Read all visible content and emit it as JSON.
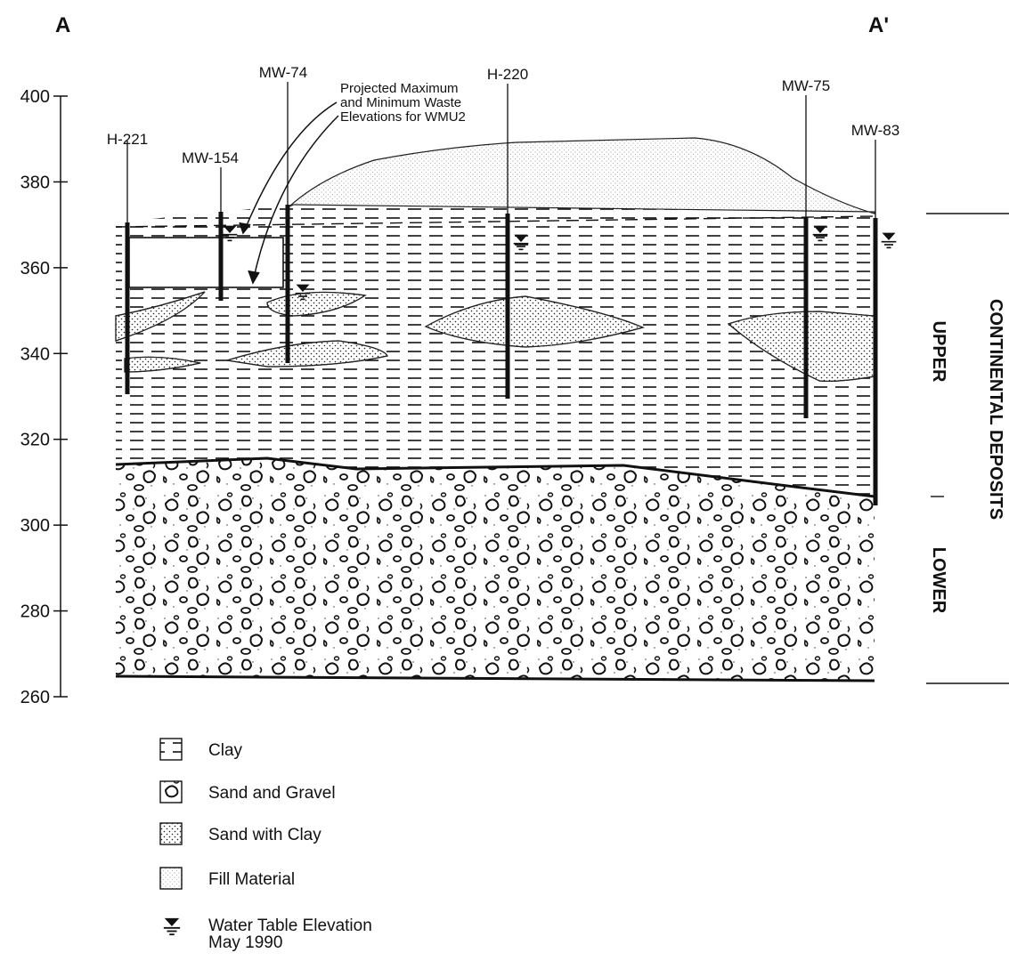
{
  "section": {
    "start": "A",
    "end": "A'"
  },
  "elevation_axis": {
    "ticks": [
      400,
      380,
      360,
      340,
      320,
      300,
      280,
      260
    ]
  },
  "wells": [
    {
      "label": "H-221"
    },
    {
      "label": "MW-154"
    },
    {
      "label": "MW-74"
    },
    {
      "label": "H-220"
    },
    {
      "label": "MW-75"
    },
    {
      "label": "MW-83"
    }
  ],
  "annotation": {
    "lines": [
      "Projected Maximum",
      "and Minimum Waste",
      "Elevations for WMU2"
    ]
  },
  "units": {
    "group": "CONTINENTAL DEPOSITS",
    "upper": "UPPER",
    "lower": "LOWER"
  },
  "legend": [
    {
      "label": "Clay"
    },
    {
      "label": "Sand and Gravel"
    },
    {
      "label": "Sand with Clay"
    },
    {
      "label": "Fill Material"
    },
    {
      "lines": [
        "Water Table Elevation",
        "May 1990"
      ]
    }
  ]
}
